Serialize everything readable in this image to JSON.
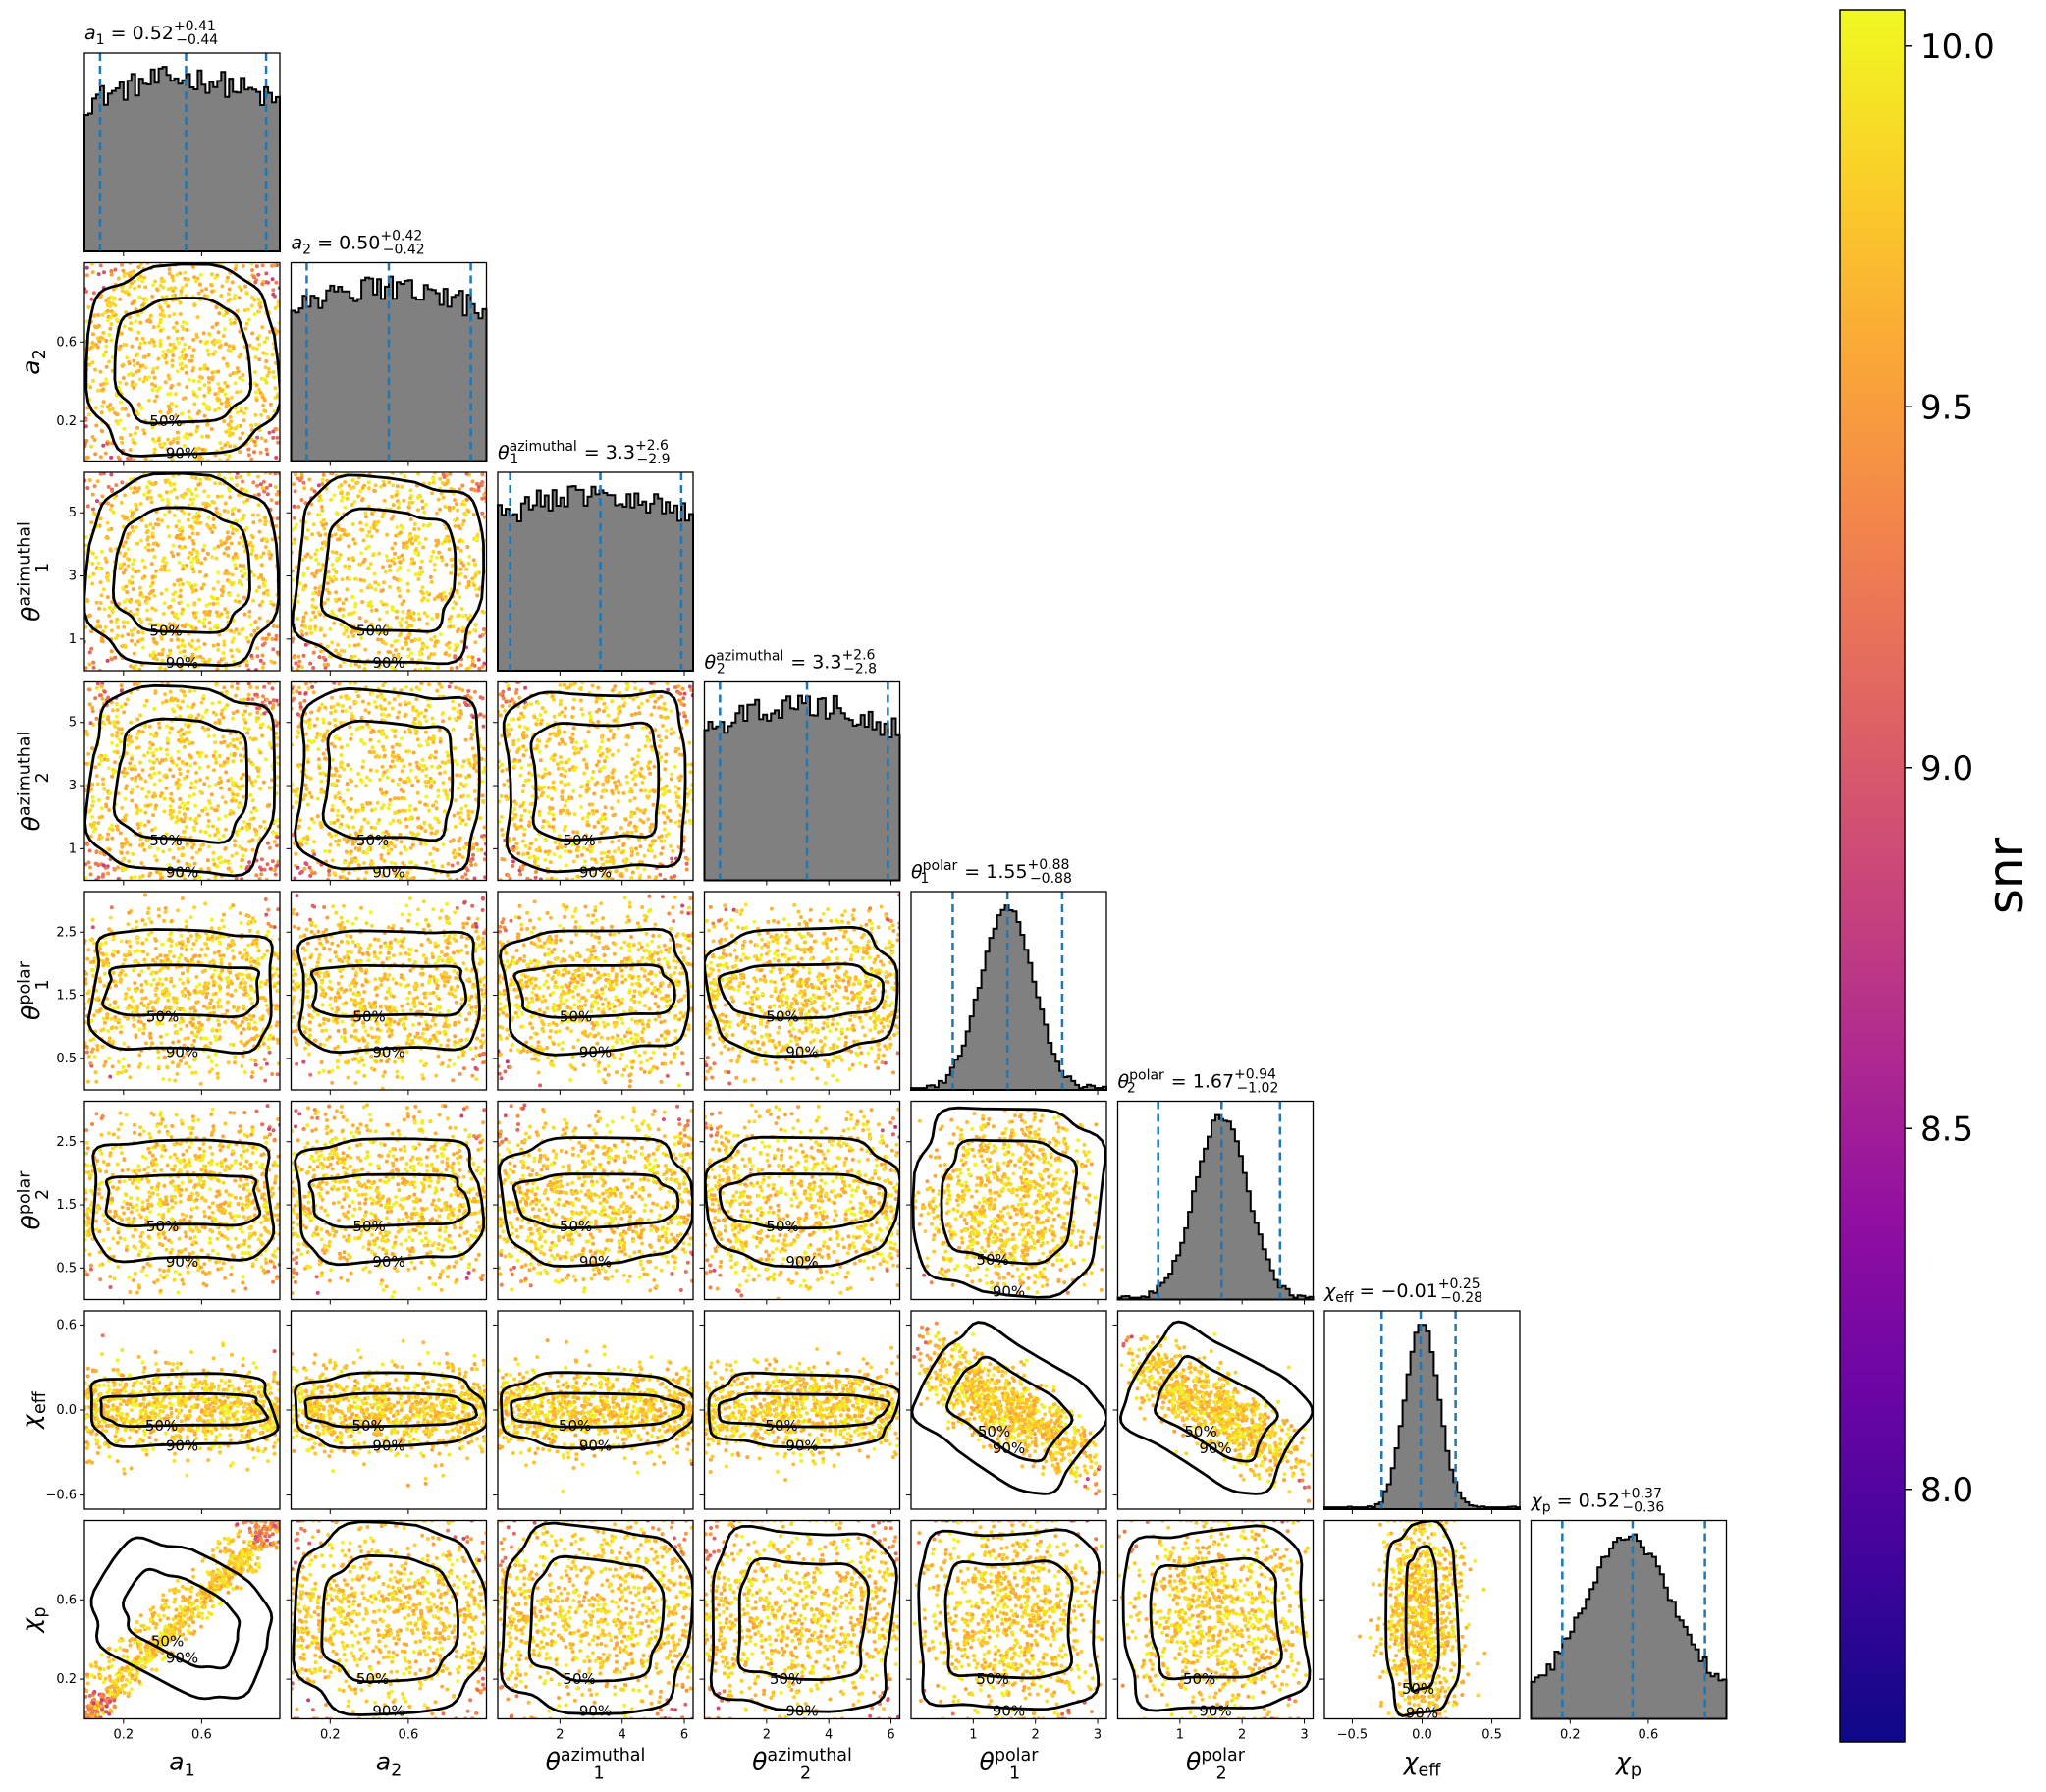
{
  "chart_data": {
    "type": "scatter",
    "kind": "corner plot",
    "point_color_by": "snr",
    "colormap": "plasma",
    "params": [
      {
        "key": "a1",
        "label": "a",
        "sub": "1",
        "sup": "",
        "range": [
          0.0,
          1.0
        ],
        "ticks": [
          {
            "v": 0.2,
            "t": "0.2"
          },
          {
            "v": 0.6,
            "t": "0.6"
          }
        ],
        "title_value": "0.52",
        "plus": "+0.41",
        "minus": "−0.44",
        "median": 0.52,
        "q_low": 0.08,
        "q_high": 0.93,
        "dist": "uniform",
        "show_ylab": false
      },
      {
        "key": "a2",
        "label": "a",
        "sub": "2",
        "sup": "",
        "range": [
          0.0,
          1.0
        ],
        "ticks": [
          {
            "v": 0.2,
            "t": "0.2"
          },
          {
            "v": 0.6,
            "t": "0.6"
          }
        ],
        "title_value": "0.50",
        "plus": "+0.42",
        "minus": "−0.42",
        "median": 0.5,
        "q_low": 0.08,
        "q_high": 0.92,
        "dist": "uniform",
        "show_ylab": true
      },
      {
        "key": "theta1_az",
        "label": "θ",
        "sub": "1",
        "sup": "azimuthal",
        "range": [
          0.0,
          6.283
        ],
        "ticks": [
          {
            "v": 1,
            "t": "1"
          },
          {
            "v": 3,
            "t": "3"
          },
          {
            "v": 5,
            "t": "5"
          }
        ],
        "xticks": [
          {
            "v": 2,
            "t": "2"
          },
          {
            "v": 4,
            "t": "4"
          },
          {
            "v": 6,
            "t": "6"
          }
        ],
        "title_value": "3.3",
        "plus": "+2.6",
        "minus": "−2.9",
        "median": 3.3,
        "q_low": 0.4,
        "q_high": 5.9,
        "dist": "uniform",
        "show_ylab": true
      },
      {
        "key": "theta2_az",
        "label": "θ",
        "sub": "2",
        "sup": "azimuthal",
        "range": [
          0.0,
          6.283
        ],
        "ticks": [
          {
            "v": 1,
            "t": "1"
          },
          {
            "v": 3,
            "t": "3"
          },
          {
            "v": 5,
            "t": "5"
          }
        ],
        "xticks": [
          {
            "v": 2,
            "t": "2"
          },
          {
            "v": 4,
            "t": "4"
          },
          {
            "v": 6,
            "t": "6"
          }
        ],
        "title_value": "3.3",
        "plus": "+2.6",
        "minus": "−2.8",
        "median": 3.3,
        "q_low": 0.5,
        "q_high": 5.9,
        "dist": "uniform",
        "show_ylab": true
      },
      {
        "key": "theta1_pol",
        "label": "θ",
        "sub": "1",
        "sup": "polar",
        "range": [
          0.0,
          3.1416
        ],
        "ticks": [
          {
            "v": 0.5,
            "t": "0.5"
          },
          {
            "v": 1.5,
            "t": "1.5"
          },
          {
            "v": 2.5,
            "t": "2.5"
          }
        ],
        "xticks": [
          {
            "v": 1,
            "t": "1"
          },
          {
            "v": 2,
            "t": "2"
          },
          {
            "v": 3,
            "t": "3"
          }
        ],
        "title_value": "1.55",
        "plus": "+0.88",
        "minus": "−0.88",
        "median": 1.55,
        "q_low": 0.67,
        "q_high": 2.43,
        "dist": "sine",
        "show_ylab": true
      },
      {
        "key": "theta2_pol",
        "label": "θ",
        "sub": "2",
        "sup": "polar",
        "range": [
          0.0,
          3.1416
        ],
        "ticks": [
          {
            "v": 0.5,
            "t": "0.5"
          },
          {
            "v": 1.5,
            "t": "1.5"
          },
          {
            "v": 2.5,
            "t": "2.5"
          }
        ],
        "xticks": [
          {
            "v": 1,
            "t": "1"
          },
          {
            "v": 2,
            "t": "2"
          },
          {
            "v": 3,
            "t": "3"
          }
        ],
        "title_value": "1.67",
        "plus": "+0.94",
        "minus": "−1.02",
        "median": 1.67,
        "q_low": 0.65,
        "q_high": 2.61,
        "dist": "sine",
        "show_ylab": true
      },
      {
        "key": "chi_eff",
        "label": "χ",
        "sub": "eff",
        "sup": "",
        "range": [
          -0.7,
          0.7
        ],
        "ticks": [
          {
            "v": -0.6,
            "t": "−0.6"
          },
          {
            "v": 0.0,
            "t": "0.0"
          },
          {
            "v": 0.6,
            "t": "0.6"
          }
        ],
        "xticks": [
          {
            "v": -0.5,
            "t": "−0.5"
          },
          {
            "v": 0.0,
            "t": "0.0"
          },
          {
            "v": 0.5,
            "t": "0.5"
          }
        ],
        "title_value": "−0.01",
        "plus": "+0.25",
        "minus": "−0.28",
        "median": -0.01,
        "q_low": -0.29,
        "q_high": 0.24,
        "dist": "peaked",
        "show_ylab": true
      },
      {
        "key": "chi_p",
        "label": "χ",
        "sub": "p",
        "sup": "",
        "range": [
          0.0,
          1.0
        ],
        "ticks": [
          {
            "v": 0.2,
            "t": "0.2"
          },
          {
            "v": 0.6,
            "t": "0.6"
          }
        ],
        "title_value": "0.52",
        "plus": "+0.37",
        "minus": "−0.36",
        "median": 0.52,
        "q_low": 0.16,
        "q_high": 0.89,
        "dist": "hump",
        "show_ylab": true
      }
    ],
    "contour_levels": [
      "50%",
      "90%"
    ],
    "colorbar": {
      "label": "snr",
      "range": [
        7.65,
        10.05
      ],
      "ticks": [
        {
          "v": 8.0,
          "t": "8.0"
        },
        {
          "v": 8.5,
          "t": "8.5"
        },
        {
          "v": 9.0,
          "t": "9.0"
        },
        {
          "v": 9.5,
          "t": "9.5"
        },
        {
          "v": 10.0,
          "t": "10.0"
        }
      ]
    },
    "quantile_line_color": "#1f77b4",
    "histogram_color": "#808080"
  }
}
